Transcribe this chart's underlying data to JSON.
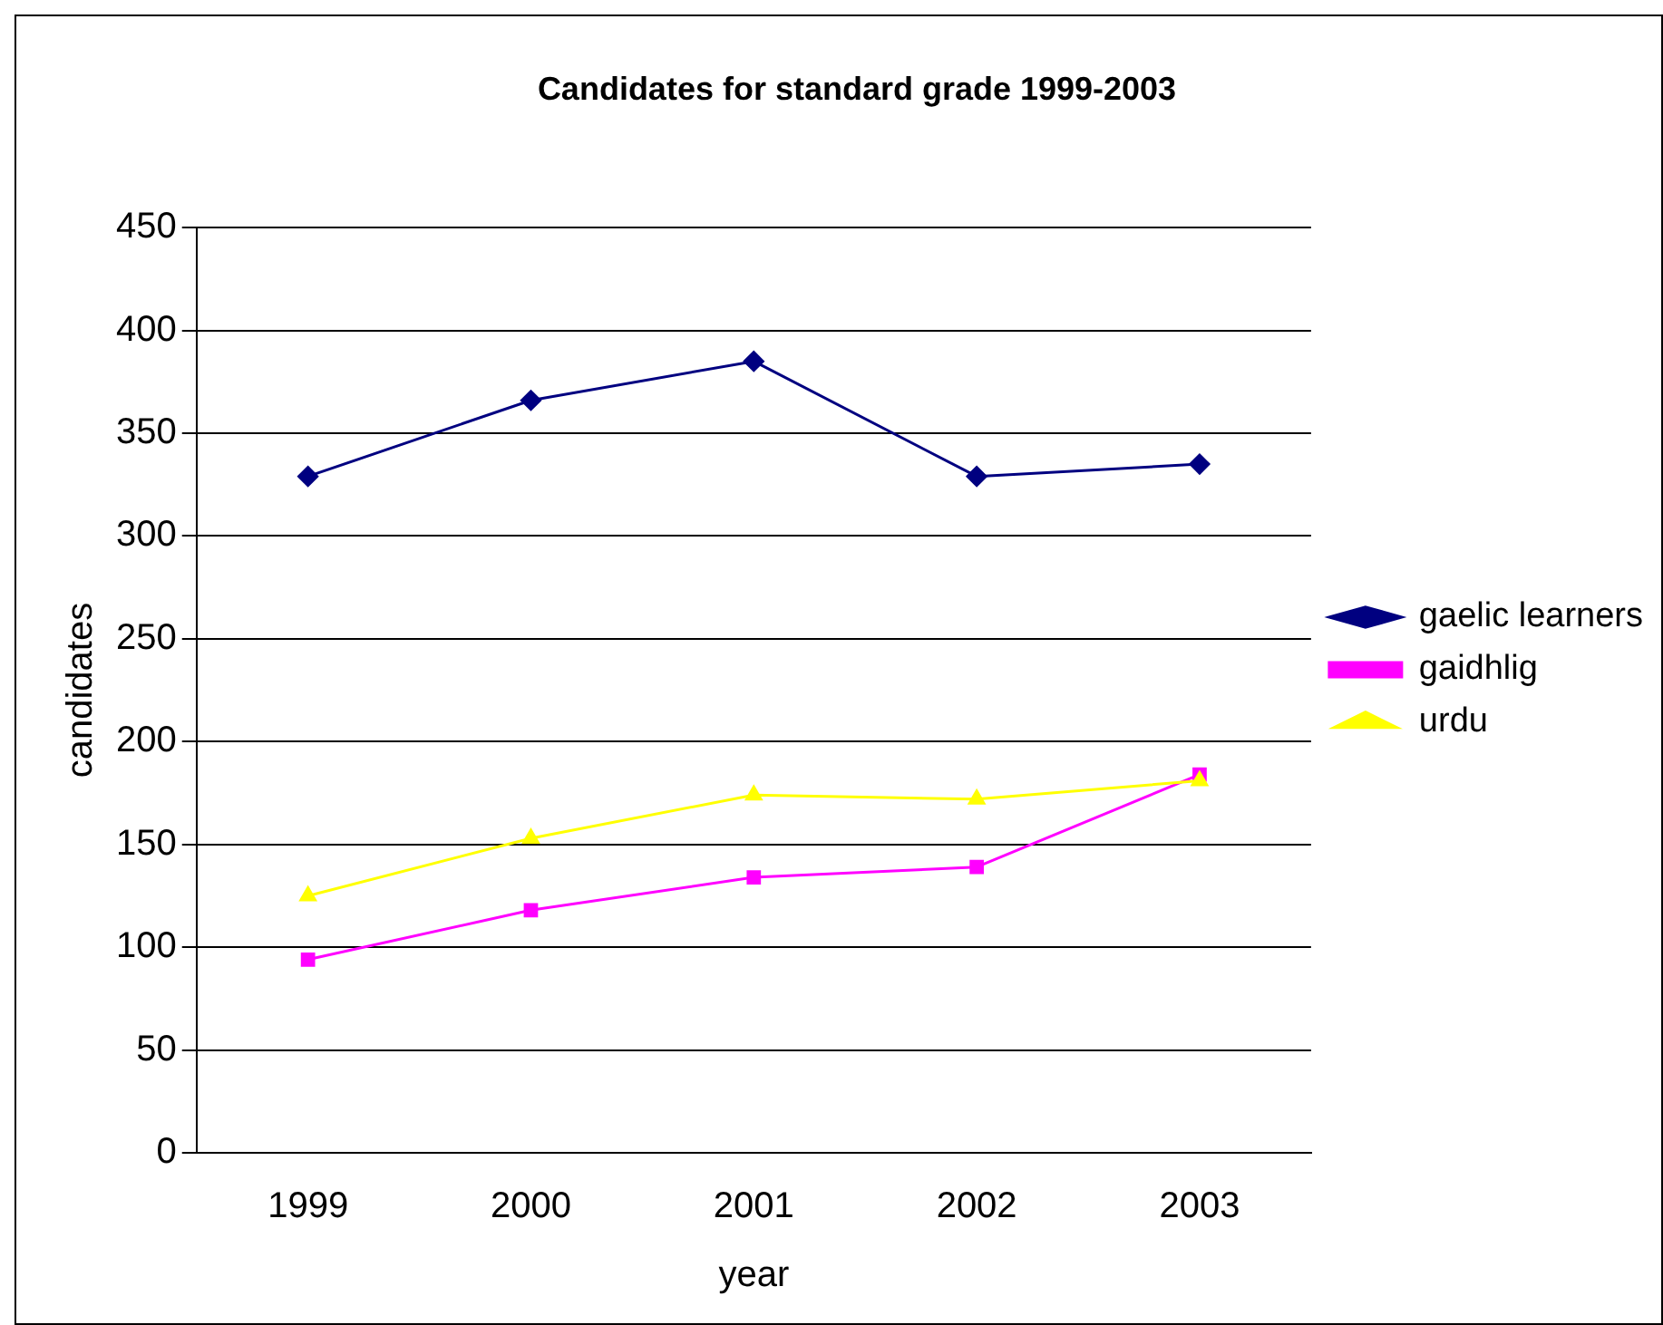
{
  "chart_data": {
    "type": "line",
    "title": "Candidates for standard grade 1999-2003",
    "xlabel": "year",
    "ylabel": "candidates",
    "categories": [
      "1999",
      "2000",
      "2001",
      "2002",
      "2003"
    ],
    "series": [
      {
        "name": "gaelic learners",
        "color": "#000080",
        "marker": "diamond",
        "values": [
          329,
          366,
          385,
          329,
          335
        ]
      },
      {
        "name": "gaidhlig",
        "color": "#ff00ff",
        "marker": "square",
        "values": [
          94,
          118,
          134,
          139,
          184
        ]
      },
      {
        "name": "urdu",
        "color": "#ffff00",
        "marker": "triangle",
        "values": [
          125,
          153,
          174,
          172,
          181
        ]
      }
    ],
    "ylim": [
      0,
      450
    ],
    "yticks": [
      0,
      50,
      100,
      150,
      200,
      250,
      300,
      350,
      400,
      450
    ],
    "grid": "y",
    "legend": "right",
    "line_style": "solid"
  }
}
